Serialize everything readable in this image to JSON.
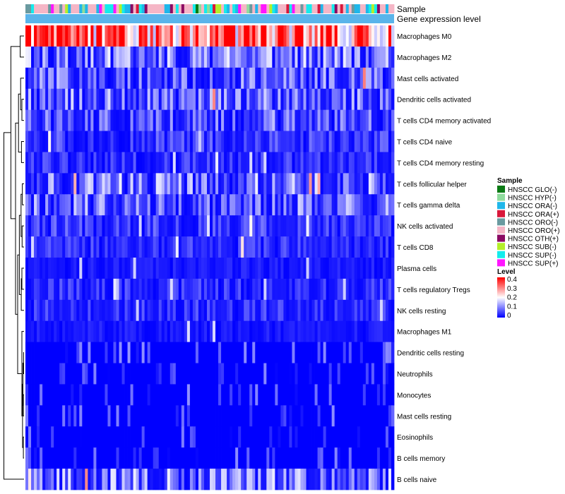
{
  "chart_data": {
    "type": "heatmap",
    "title": "",
    "annotation_tracks": [
      "Sample",
      "Gene expression level"
    ],
    "rows": [
      "Macrophages M0",
      "Macrophages M2",
      "Mast cells activated",
      "Dendritic cells activated",
      "T cells CD4 memory activated",
      "T cells CD4 naive",
      "T cells CD4 memory resting",
      "T cells follicular helper",
      "T cells gamma delta",
      "NK cells activated",
      "T cells CD8",
      "Plasma cells",
      "T cells regulatory  Tregs",
      "NK cells resting",
      "Macrophages M1",
      "Dendritic cells resting",
      "Neutrophils",
      "Monocytes",
      "Mast cells resting",
      "Eosinophils",
      "B cells memory",
      "B cells naive"
    ],
    "row_typical_levels": [
      0.3,
      0.1,
      0.08,
      0.09,
      0.07,
      0.05,
      0.04,
      0.1,
      0.09,
      0.05,
      0.04,
      0.02,
      0.04,
      0.04,
      0.02,
      0.01,
      0.01,
      0.01,
      0.01,
      0.01,
      0.01,
      0.1
    ],
    "n_samples": 130,
    "sample_legend": {
      "title": "Sample",
      "entries": [
        {
          "label": "HNSCC GLO(-)",
          "color": "#0a7a14"
        },
        {
          "label": "HNSCC HYP(-)",
          "color": "#8fdc9d"
        },
        {
          "label": "HNSCC ORA(-)",
          "color": "#1fb7ea"
        },
        {
          "label": "HNSCC ORA(+)",
          "color": "#d9183b"
        },
        {
          "label": "HNSCC ORO(-)",
          "color": "#6a9aa0"
        },
        {
          "label": "HNSCC ORO(+)",
          "color": "#f5b6c6"
        },
        {
          "label": "HNSCC OTH(+)",
          "color": "#8b0a63"
        },
        {
          "label": "HNSCC SUB(-)",
          "color": "#b4ef2a"
        },
        {
          "label": "HNSCC SUP(-)",
          "color": "#14ecec"
        },
        {
          "label": "HNSCC SUP(+)",
          "color": "#ff16ff"
        }
      ]
    },
    "level_legend": {
      "title": "Level",
      "ticks": [
        "0.4",
        "0.3",
        "0.2",
        "0.1",
        "0"
      ],
      "range": [
        0,
        0.4
      ],
      "colors": [
        "#0000ff",
        "#ffffff",
        "#ff0000"
      ]
    },
    "gene_expression_color": "#5ab4ea",
    "row_dendrogram": true
  }
}
